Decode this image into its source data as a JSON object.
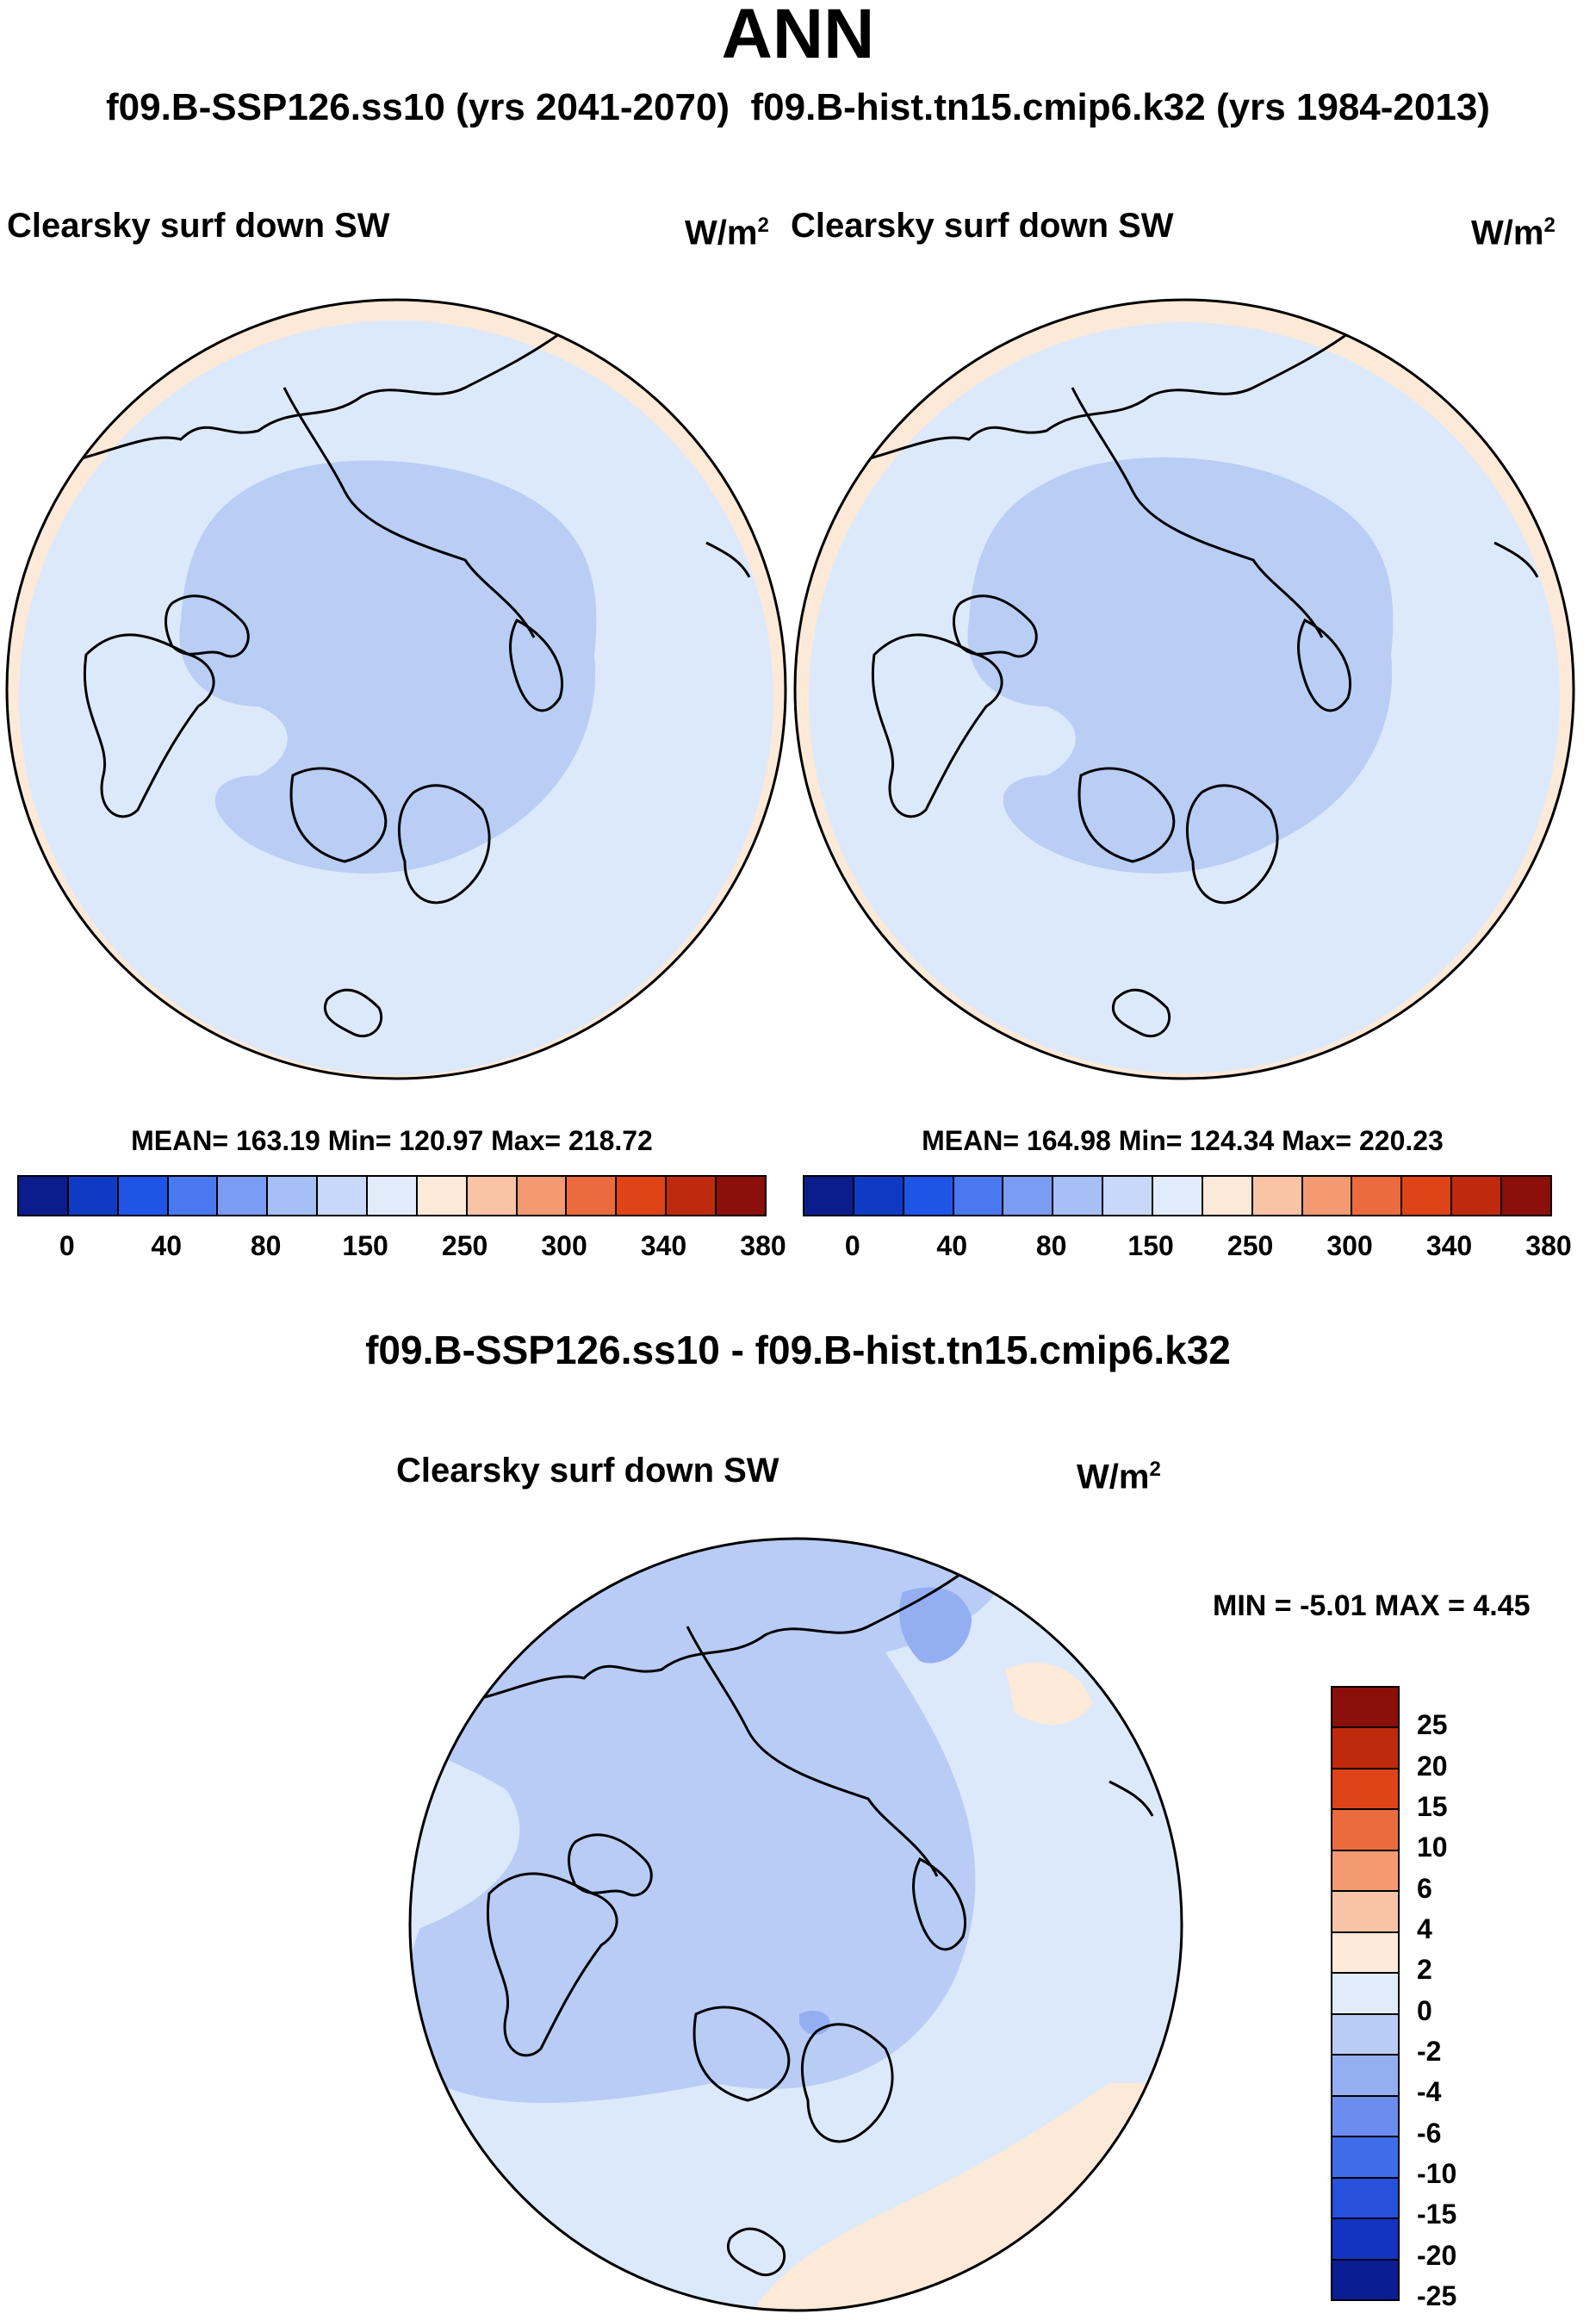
{
  "header": {
    "title": "ANN",
    "subtitle_left": "f09.B-SSP126.ss10 (yrs 2041-2070)",
    "subtitle_right": "f09.B-hist.tn15.cmip6.k32 (yrs 1984-2013)"
  },
  "panels": [
    {
      "variable": "Clearsky surf down SW",
      "units_base": "W/m",
      "units_exp": "2",
      "stats": "MEAN= 163.19  Min= 120.97  Max= 218.72"
    },
    {
      "variable": "Clearsky surf down SW",
      "units_base": "W/m",
      "units_exp": "2",
      "stats": "MEAN= 164.98  Min= 124.34  Max= 220.23"
    }
  ],
  "abs_colorbar": {
    "colors": [
      "#0b1d8c",
      "#0f3bc4",
      "#1f55e6",
      "#4a78f0",
      "#7a9cf2",
      "#a6bff4",
      "#c8d8f8",
      "#e1ecfb",
      "#fde9d8",
      "#f9c4a6",
      "#f39a72",
      "#ec6b3e",
      "#de4417",
      "#bf2a0e",
      "#8b0f0a"
    ],
    "labels": [
      "0",
      "40",
      "80",
      "150",
      "250",
      "300",
      "340",
      "380"
    ]
  },
  "difference": {
    "title": "f09.B-SSP126.ss10 - f09.B-hist.tn15.cmip6.k32",
    "variable": "Clearsky surf down SW",
    "units_base": "W/m",
    "units_exp": "2",
    "minmax": "MIN =  -5.01 MAX =   4.45"
  },
  "diff_colorbar": {
    "colors": [
      "#8b0f0a",
      "#bf2a0e",
      "#de4417",
      "#ec6b3e",
      "#f39a72",
      "#f9c4a6",
      "#fde9d8",
      "#e1ecfb",
      "#b9ccf6",
      "#94aef2",
      "#6c8df0",
      "#3f6ce8",
      "#2750dc",
      "#1333c0",
      "#0a1d93"
    ],
    "labels": [
      "25",
      "20",
      "15",
      "10",
      "6",
      "4",
      "2",
      "0",
      "-2",
      "-4",
      "-6",
      "-10",
      "-15",
      "-20",
      "-25"
    ]
  },
  "map_fills": {
    "ocean_outer": "#fde9d8",
    "mid": "#dce9fb",
    "inner": "#b9cdf5",
    "diff_base": "#dce9fb",
    "diff_neg": "#b9ccf6",
    "diff_more_neg": "#94aef2",
    "diff_pos": "#fde9d8"
  }
}
